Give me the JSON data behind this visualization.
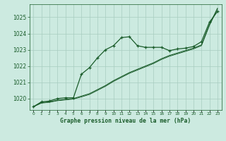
{
  "xlabel": "Graphe pression niveau de la mer (hPa)",
  "ylim": [
    1019.3,
    1025.8
  ],
  "xlim": [
    -0.5,
    23.5
  ],
  "yticks": [
    1020,
    1021,
    1022,
    1023,
    1024,
    1025
  ],
  "xticks": [
    0,
    1,
    2,
    3,
    4,
    5,
    6,
    7,
    8,
    9,
    10,
    11,
    12,
    13,
    14,
    15,
    16,
    17,
    18,
    19,
    20,
    21,
    22,
    23
  ],
  "bg_color": "#cceae0",
  "grid_color": "#a8ccc0",
  "line_color": "#1a5c2a",
  "line_wavy": [
    1019.5,
    1019.8,
    1019.85,
    1020.0,
    1020.05,
    1020.05,
    1021.5,
    1021.9,
    1022.5,
    1023.0,
    1023.25,
    1023.75,
    1023.8,
    1023.25,
    1023.15,
    1023.15,
    1023.15,
    1022.95,
    1023.05,
    1023.1,
    1023.2,
    1023.5,
    1024.7,
    1025.35
  ],
  "line_straight1": [
    1019.5,
    1019.75,
    1019.8,
    1019.9,
    1019.95,
    1020.0,
    1020.15,
    1020.3,
    1020.55,
    1020.8,
    1021.1,
    1021.35,
    1021.6,
    1021.8,
    1022.0,
    1022.2,
    1022.45,
    1022.65,
    1022.8,
    1022.95,
    1023.1,
    1023.3,
    1024.55,
    1025.55
  ],
  "line_straight2": [
    1019.5,
    1019.72,
    1019.77,
    1019.87,
    1019.92,
    1019.97,
    1020.1,
    1020.25,
    1020.5,
    1020.75,
    1021.05,
    1021.3,
    1021.55,
    1021.75,
    1021.95,
    1022.15,
    1022.4,
    1022.6,
    1022.75,
    1022.9,
    1023.05,
    1023.25,
    1024.5,
    1025.5
  ]
}
